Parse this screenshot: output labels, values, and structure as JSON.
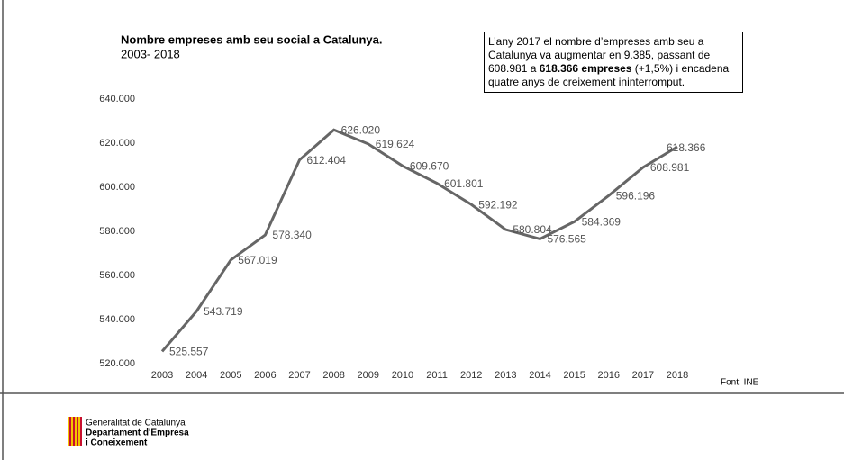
{
  "chart_data": {
    "type": "line",
    "title": "Nombre empreses amb seu social a Catalunya.",
    "subtitle": "2003- 2018",
    "categories": [
      "2003",
      "2004",
      "2005",
      "2006",
      "2007",
      "2008",
      "2009",
      "2010",
      "2011",
      "2012",
      "2013",
      "2014",
      "2015",
      "2016",
      "2017",
      "2018"
    ],
    "values": [
      525557,
      543719,
      567019,
      578340,
      612404,
      626020,
      619624,
      609670,
      601801,
      592192,
      580804,
      576565,
      584369,
      596196,
      608981,
      618366
    ],
    "value_labels": [
      "525.557",
      "543.719",
      "567.019",
      "578.340",
      "612.404",
      "626.020",
      "619.624",
      "609.670",
      "601.801",
      "592.192",
      "580.804",
      "576.565",
      "584.369",
      "596.196",
      "608.981",
      "618.366"
    ],
    "color": "#666666",
    "ylim": [
      520000,
      640000
    ],
    "yticks": [
      {
        "value": 520000,
        "label": "520.000"
      },
      {
        "value": 540000,
        "label": "540.000"
      },
      {
        "value": 560000,
        "label": "560.000"
      },
      {
        "value": 580000,
        "label": "580.000"
      },
      {
        "value": 600000,
        "label": "600.000"
      },
      {
        "value": 620000,
        "label": "620.000"
      },
      {
        "value": 640000,
        "label": "640.000"
      }
    ],
    "grid": false,
    "annotation": {
      "parts": [
        "L’any 2017 el nombre d’empreses amb seu a Catalunya va augmentar en 9.385, passant de 608.981 a ",
        "618.366 empreses",
        " (+1,5%) i encadena quatre anys de creixement ininterromput."
      ]
    },
    "source": "Font: INE"
  },
  "footer": {
    "logo_lines": [
      "Generalitat de Catalunya",
      "Departament d'Empresa",
      "i Coneixement"
    ]
  }
}
